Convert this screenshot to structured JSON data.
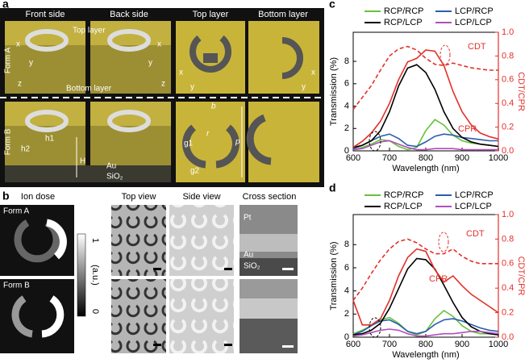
{
  "panel_a": {
    "label": "a",
    "columns": [
      "Front side",
      "Back side",
      "Top layer",
      "Bottom layer"
    ],
    "rows": [
      "Form A",
      "Form B"
    ],
    "callouts": [
      "Top layer",
      "Bottom layer"
    ],
    "axes": [
      "x",
      "y",
      "z"
    ],
    "dimensions": [
      "b",
      "r",
      "p",
      "g1",
      "g2",
      "h1",
      "h2",
      "H"
    ],
    "materials": [
      "Au",
      "SiO₂"
    ]
  },
  "panel_b": {
    "label": "b",
    "columns": [
      "Ion dose",
      "Top view",
      "Side view",
      "Cross section"
    ],
    "rows": [
      "Form A",
      "Form B"
    ],
    "colorbar": {
      "max": 1,
      "min": 0,
      "unit": "(a.u.)"
    },
    "materials": [
      "Pt",
      "Au",
      "SiO₂"
    ]
  },
  "chart_data": [
    {
      "type": "line",
      "panel": "c",
      "xlabel": "Wavelength (nm)",
      "ylabel": "Transmission (%)",
      "y2label": "CDT/CPR",
      "x": [
        600,
        625,
        650,
        675,
        700,
        725,
        750,
        775,
        800,
        825,
        850,
        875,
        900,
        925,
        950,
        975,
        1000
      ],
      "xlim": [
        600,
        1000
      ],
      "xticks": [
        600,
        700,
        800,
        900,
        1000
      ],
      "ylim": [
        0,
        10.6
      ],
      "yticks": [
        0,
        2,
        4,
        6,
        8
      ],
      "y2lim": [
        0,
        1.0
      ],
      "y2ticks": [
        {
          "value": 0,
          "label": "0.0"
        },
        {
          "value": 0.2,
          "label": "0.2"
        },
        {
          "value": 0.4,
          "label": "0.4"
        },
        {
          "value": 0.6,
          "label": "0.6"
        },
        {
          "value": 0.8,
          "label": "0.8"
        },
        {
          "value": 1.0,
          "label": "1.0"
        }
      ],
      "series": [
        {
          "name": "RCP/RCP",
          "color": "#66c23a",
          "values": [
            0.1,
            0.3,
            0.6,
            1.0,
            0.9,
            0.4,
            0.1,
            0.3,
            1.8,
            2.8,
            2.3,
            1.4,
            0.9,
            0.7,
            0.6,
            0.5,
            0.4
          ]
        },
        {
          "name": "LCP/RCP",
          "color": "#2a5db0",
          "values": [
            0.2,
            0.5,
            0.9,
            1.3,
            1.5,
            1.1,
            0.5,
            0.4,
            0.8,
            1.3,
            1.5,
            1.4,
            1.2,
            1.1,
            1.0,
            0.9,
            0.9
          ]
        },
        {
          "name": "RCP/LCP",
          "color": "#000000",
          "values": [
            0.3,
            0.5,
            0.9,
            1.8,
            3.5,
            5.8,
            7.4,
            7.7,
            7.0,
            5.5,
            3.5,
            2.0,
            1.2,
            0.8,
            0.6,
            0.5,
            0.4
          ]
        },
        {
          "name": "LCP/LCP",
          "color": "#b24fb8",
          "values": [
            0.1,
            0.2,
            0.5,
            0.8,
            0.9,
            0.6,
            0.3,
            0.1,
            0.1,
            0.2,
            0.2,
            0.2,
            0.1,
            0.1,
            0.1,
            0.1,
            0.1
          ]
        },
        {
          "name": "CDT",
          "color": "#e3302a",
          "axis": "y2",
          "values": [
            0.03,
            0.08,
            0.15,
            0.25,
            0.4,
            0.6,
            0.75,
            0.78,
            0.85,
            0.84,
            0.72,
            0.5,
            0.33,
            0.22,
            0.15,
            0.12,
            0.1
          ]
        },
        {
          "name": "CPR",
          "color": "#e3302a",
          "axis": "y2",
          "dashed": true,
          "values": [
            0.35,
            0.45,
            0.55,
            0.68,
            0.8,
            0.86,
            0.88,
            0.85,
            0.78,
            0.73,
            0.72,
            0.74,
            0.72,
            0.7,
            0.69,
            0.68,
            0.68
          ]
        }
      ]
    },
    {
      "type": "line",
      "panel": "d",
      "xlabel": "Wavelength (nm)",
      "ylabel": "Transmission (%)",
      "y2label": "CDT/CPR",
      "x": [
        600,
        625,
        650,
        675,
        700,
        725,
        750,
        775,
        800,
        825,
        850,
        875,
        900,
        925,
        950,
        975,
        1000
      ],
      "xlim": [
        600,
        1000
      ],
      "xticks": [
        600,
        700,
        800,
        900,
        1000
      ],
      "ylim": [
        0,
        10.6
      ],
      "yticks": [
        0,
        2,
        4,
        6,
        8
      ],
      "y2lim": [
        0,
        1.0
      ],
      "y2ticks": [
        {
          "value": 0,
          "label": "0.0"
        },
        {
          "value": 0.2,
          "label": "0.2"
        },
        {
          "value": 0.4,
          "label": "0.4"
        },
        {
          "value": 0.6,
          "label": "0.6"
        },
        {
          "value": 0.8,
          "label": "0.8"
        },
        {
          "value": 1.0,
          "label": "1.0"
        }
      ],
      "series": [
        {
          "name": "RCP/RCP",
          "color": "#66c23a",
          "values": [
            0.3,
            0.6,
            1.0,
            1.5,
            1.7,
            1.2,
            0.5,
            0.2,
            0.5,
            1.6,
            2.3,
            1.8,
            1.0,
            0.5,
            0.3,
            0.3,
            0.3
          ]
        },
        {
          "name": "LCP/RCP",
          "color": "#2a5db0",
          "values": [
            0.2,
            0.5,
            1.0,
            1.4,
            1.5,
            1.1,
            0.5,
            0.3,
            0.5,
            1.1,
            1.5,
            1.6,
            1.4,
            1.1,
            0.8,
            0.6,
            0.5
          ]
        },
        {
          "name": "RCP/LCP",
          "color": "#000000",
          "values": [
            0.2,
            0.3,
            0.6,
            1.2,
            2.5,
            4.2,
            5.9,
            6.8,
            6.7,
            5.9,
            4.5,
            3.0,
            1.7,
            0.9,
            0.5,
            0.3,
            0.2
          ]
        },
        {
          "name": "LCP/LCP",
          "color": "#b24fb8",
          "values": [
            0.1,
            0.2,
            0.4,
            0.6,
            0.7,
            0.6,
            0.3,
            0.1,
            0.1,
            0.2,
            0.3,
            0.3,
            0.4,
            0.5,
            0.5,
            0.4,
            0.3
          ]
        },
        {
          "name": "CDT",
          "color": "#e3302a",
          "axis": "y2",
          "values": [
            0.3,
            0.1,
            0.1,
            0.15,
            0.3,
            0.5,
            0.65,
            0.72,
            0.7,
            0.55,
            0.45,
            0.5,
            0.42,
            0.35,
            0.3,
            0.25,
            0.2
          ]
        },
        {
          "name": "CPR",
          "color": "#e3302a",
          "axis": "y2",
          "dashed": true,
          "values": [
            0.3,
            0.4,
            0.52,
            0.63,
            0.72,
            0.78,
            0.8,
            0.77,
            0.72,
            0.68,
            0.68,
            0.72,
            0.66,
            0.62,
            0.6,
            0.6,
            0.6
          ]
        }
      ]
    }
  ]
}
